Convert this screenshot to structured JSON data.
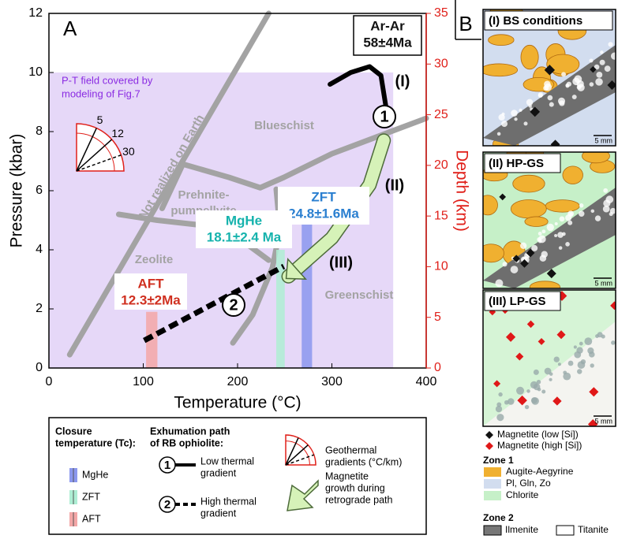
{
  "chart_data": {
    "type": "pt-diagram",
    "panel": "A",
    "xlabel": "Temperature (°C)",
    "ylabel": "Pressure (kbar)",
    "y2label": "Depth (km)",
    "xlim": [
      0,
      400
    ],
    "xticks": [
      0,
      100,
      200,
      300,
      400
    ],
    "ylim": [
      0,
      12
    ],
    "yticks": [
      0,
      2,
      4,
      6,
      8,
      10,
      12
    ],
    "y2lim": [
      0,
      35
    ],
    "y2ticks": [
      0,
      5,
      10,
      15,
      20,
      25,
      30,
      35
    ],
    "y2color": "#e0201a",
    "model_field": {
      "label": [
        "P-T field covered by",
        "modeling of Fig.7"
      ],
      "x": [
        0,
        365
      ],
      "y": [
        0,
        10
      ],
      "color": "#e6d8f8",
      "label_color": "#8a2be2"
    },
    "boundaries": {
      "color": "#a3a3a3",
      "lines": [
        {
          "x": [
            22,
            233
          ],
          "y": [
            0.45,
            12
          ]
        },
        {
          "x": [
            142,
            191,
            224,
            249,
            300,
            400
          ],
          "y": [
            6.9,
            6.45,
            6.1,
            6.45,
            7.25,
            8.45
          ]
        },
        {
          "x": [
            74,
            115,
            157,
            199,
            233
          ],
          "y": [
            5.2,
            5.0,
            4.85,
            4.45,
            3.65
          ]
        },
        {
          "x": [
            195,
            216,
            237,
            245,
            241
          ],
          "y": [
            0.85,
            1.8,
            3.4,
            4.7,
            6.05
          ]
        },
        {
          "x": [
            142,
            120
          ],
          "y": [
            6.9,
            5.4
          ]
        }
      ]
    },
    "facies": [
      "Blueschist",
      "Prehnite-",
      "pumpellyite",
      "Zeolite",
      "Greenschist",
      "Not realized on Earth"
    ],
    "bands": [
      {
        "name": "MgHe",
        "color": "#8b98ee",
        "t": [
          268,
          279
        ],
        "p": [
          0,
          5.45
        ]
      },
      {
        "name": "ZFT",
        "color": "#aeeed4",
        "t": [
          241,
          250
        ],
        "p": [
          0,
          4.0
        ]
      },
      {
        "name": "AFT",
        "color": "#f3a7a7",
        "t": [
          103,
          115
        ],
        "p": [
          0,
          1.9
        ]
      }
    ],
    "ages": [
      {
        "label": "Ar-Ar",
        "age": "58±4Ma",
        "color": "#111111"
      },
      {
        "label": "ZFT",
        "age": "24.8±1.6Ma",
        "color": "#2a7fd0"
      },
      {
        "label": "MgHe",
        "age": "18.1±2.4 Ma",
        "color": "#16b3ad"
      },
      {
        "label": "AFT",
        "age": "12.3±2Ma",
        "color": "#d03020"
      }
    ],
    "path1": {
      "x": [
        298,
        320,
        340,
        352,
        358
      ],
      "y": [
        9.6,
        10.0,
        10.2,
        9.9,
        8.7
      ]
    },
    "arrow": {
      "x": [
        355,
        340,
        300,
        254
      ],
      "y": [
        7.7,
        6.2,
        4.4,
        3.1
      ],
      "color": "#d6f2b8"
    },
    "path2": {
      "x": [
        101,
        249
      ],
      "y": [
        0.93,
        3.44
      ]
    },
    "segments": [
      "(I)",
      "(II)",
      "(III)"
    ],
    "circles": [
      "1",
      "2"
    ],
    "gradients": {
      "values": [
        5,
        12,
        30
      ],
      "color": "#e0201a"
    },
    "legend": {
      "closure": [
        "Closure",
        "temperature (Tc):"
      ],
      "exhumation": [
        "Exhumation path",
        "of RB ophiolite:"
      ],
      "low": [
        "Low thermal",
        "gradient"
      ],
      "high": [
        "High thermal",
        "gradient"
      ],
      "geothermal": [
        "Geothermal",
        "gradients (°C/km)"
      ],
      "magnetite": [
        "Magnetite",
        "growth during",
        "retrograde path"
      ]
    }
  },
  "panel_b": {
    "label": "B",
    "panels": [
      {
        "title": "(I) BS conditions",
        "scale": "5 mm",
        "color": "#d2ddef"
      },
      {
        "title": "(II) HP-GS",
        "scale": "5 mm",
        "color": "#c6f0c8"
      },
      {
        "title": "(III) LP-GS",
        "scale": "5 mm",
        "color": "#d6f4d6"
      }
    ],
    "magnetite": [
      {
        "label": "Magnetite (low [Si])",
        "color": "#111111"
      },
      {
        "label": "Magnetite (high [Si])",
        "color": "#e01818"
      }
    ],
    "zone1": {
      "title": "Zone 1",
      "items": [
        {
          "label": "Augite-Aegyrine",
          "color": "#f0b030"
        },
        {
          "label": "Pl, Gln, Zo",
          "color": "#d2ddef"
        },
        {
          "label": "Chlorite",
          "color": "#c6f0c8"
        }
      ]
    },
    "zone2": {
      "title": "Zone 2",
      "items": [
        {
          "label": "Ilmenite",
          "color": "#777777"
        },
        {
          "label": "Titanite",
          "color": "#ffffff"
        }
      ]
    }
  }
}
